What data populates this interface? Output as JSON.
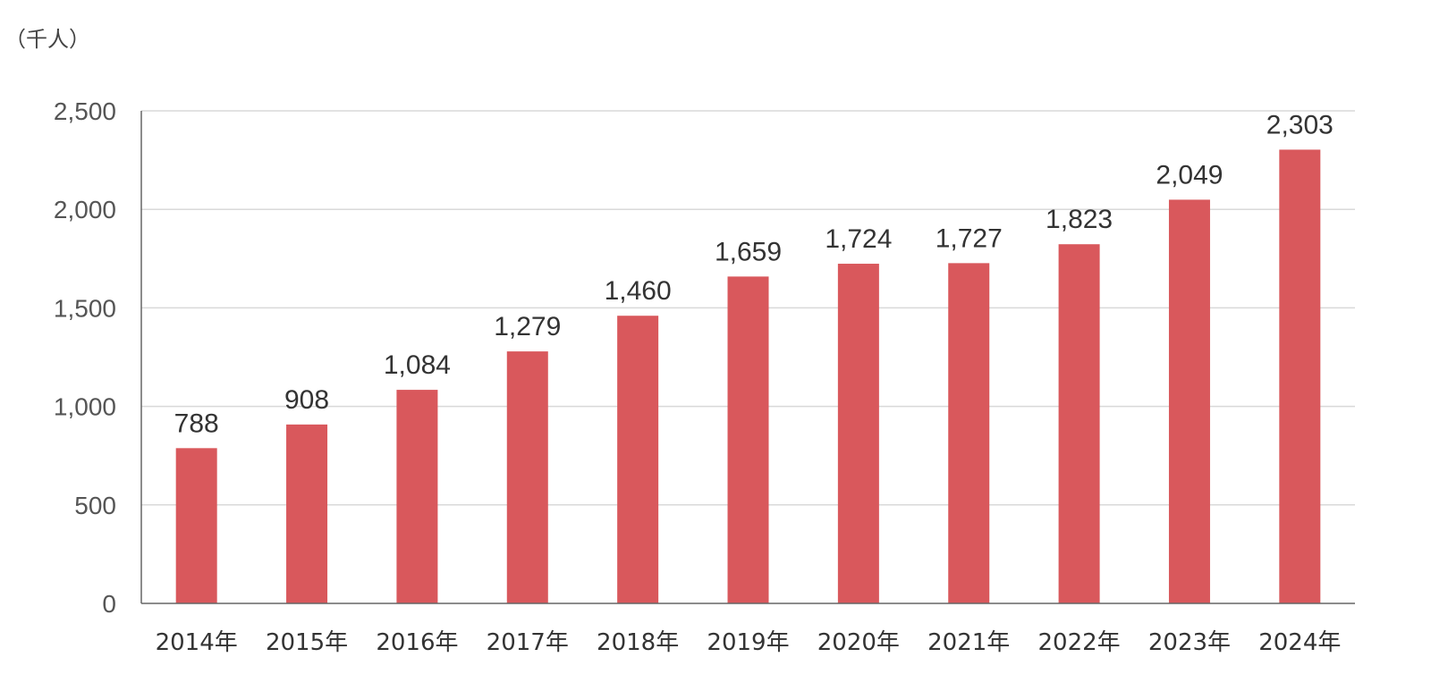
{
  "chart_data": {
    "type": "bar",
    "unit_label": "（千人）",
    "categories": [
      "2014年",
      "2015年",
      "2016年",
      "2017年",
      "2018年",
      "2019年",
      "2020年",
      "2021年",
      "2022年",
      "2023年",
      "2024年"
    ],
    "values": [
      788,
      908,
      1084,
      1279,
      1460,
      1659,
      1724,
      1727,
      1823,
      2049,
      2303
    ],
    "value_labels": [
      "788",
      "908",
      "1,084",
      "1,279",
      "1,460",
      "1,659",
      "1,724",
      "1,727",
      "1,823",
      "2,049",
      "2,303"
    ],
    "y_ticks": [
      0,
      500,
      1000,
      1500,
      2000,
      2500
    ],
    "y_tick_labels": [
      "0",
      "500",
      "1,000",
      "1,500",
      "2,000",
      "2,500"
    ],
    "ylim": [
      0,
      2500
    ],
    "grid": true,
    "bar_color": "#d9585c"
  }
}
